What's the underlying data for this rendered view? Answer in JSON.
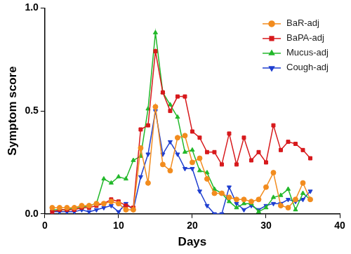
{
  "chart_data": {
    "type": "line",
    "x_label": "Days",
    "y_label": "Symptom score",
    "x": [
      1,
      2,
      3,
      4,
      5,
      6,
      7,
      8,
      9,
      10,
      11,
      12,
      13,
      14,
      15,
      16,
      17,
      18,
      19,
      20,
      21,
      22,
      23,
      24,
      25,
      26,
      27,
      28,
      29,
      30,
      31,
      32,
      33,
      34,
      35,
      36
    ],
    "series": [
      {
        "name": "BaR-adj",
        "color": "#f28c1e",
        "marker": "circle",
        "line_style": "solid",
        "values": [
          0.03,
          0.03,
          0.03,
          0.03,
          0.04,
          0.04,
          0.05,
          0.05,
          0.06,
          0.05,
          0.02,
          0.02,
          0.32,
          0.15,
          0.52,
          0.24,
          0.21,
          0.37,
          0.38,
          0.25,
          0.27,
          0.17,
          0.1,
          0.1,
          0.08,
          0.07,
          0.07,
          0.06,
          0.07,
          0.13,
          0.2,
          0.04,
          0.03,
          0.07,
          0.15,
          0.07
        ]
      },
      {
        "name": "BaPA-adj",
        "color": "#d7191c",
        "marker": "square",
        "line_style": "solid",
        "values": [
          0.01,
          0.02,
          0.02,
          0.02,
          0.03,
          0.03,
          0.04,
          0.05,
          0.07,
          0.06,
          0.04,
          0.03,
          0.41,
          0.43,
          0.79,
          0.59,
          0.5,
          0.57,
          0.57,
          0.4,
          0.37,
          0.3,
          0.3,
          0.24,
          0.39,
          0.24,
          0.37,
          0.26,
          0.3,
          0.25,
          0.43,
          0.31,
          0.35,
          0.34,
          0.31,
          0.27
        ]
      },
      {
        "name": "Mucus-adj",
        "color": "#22b82a",
        "marker": "triangle",
        "line_style": "solid",
        "values": [
          0.02,
          0.02,
          0.02,
          0.03,
          0.03,
          0.04,
          0.05,
          0.17,
          0.15,
          0.18,
          0.17,
          0.26,
          0.28,
          0.51,
          0.88,
          0.59,
          0.53,
          0.47,
          0.3,
          0.31,
          0.21,
          0.2,
          0.12,
          0.1,
          0.06,
          0.03,
          0.05,
          0.05,
          0.01,
          0.03,
          0.08,
          0.09,
          0.12,
          0.02,
          0.1,
          0.07
        ]
      },
      {
        "name": "Cough-adj",
        "color": "#1f3fd0",
        "marker": "triangle-down",
        "line_style": "solid",
        "values": [
          0.01,
          0.01,
          0.01,
          0.01,
          0.02,
          0.01,
          0.02,
          0.03,
          0.04,
          0.01,
          0.05,
          0.02,
          0.18,
          0.29,
          0.5,
          0.29,
          0.35,
          0.29,
          0.22,
          0.22,
          0.11,
          0.04,
          0.0,
          0.0,
          0.13,
          0.05,
          0.02,
          0.04,
          0.02,
          0.04,
          0.05,
          0.05,
          0.07,
          0.06,
          0.07,
          0.11
        ]
      }
    ],
    "xlim": [
      0,
      40
    ],
    "xticks": [
      0,
      10,
      20,
      30,
      40
    ],
    "ylim": [
      0,
      1
    ],
    "yticks": [
      {
        "value": 0,
        "label": "0.0"
      },
      {
        "value": 0.5,
        "label": "0.5"
      },
      {
        "value": 1,
        "label": "1.0"
      }
    ],
    "grid": false,
    "legend": "upper right"
  }
}
